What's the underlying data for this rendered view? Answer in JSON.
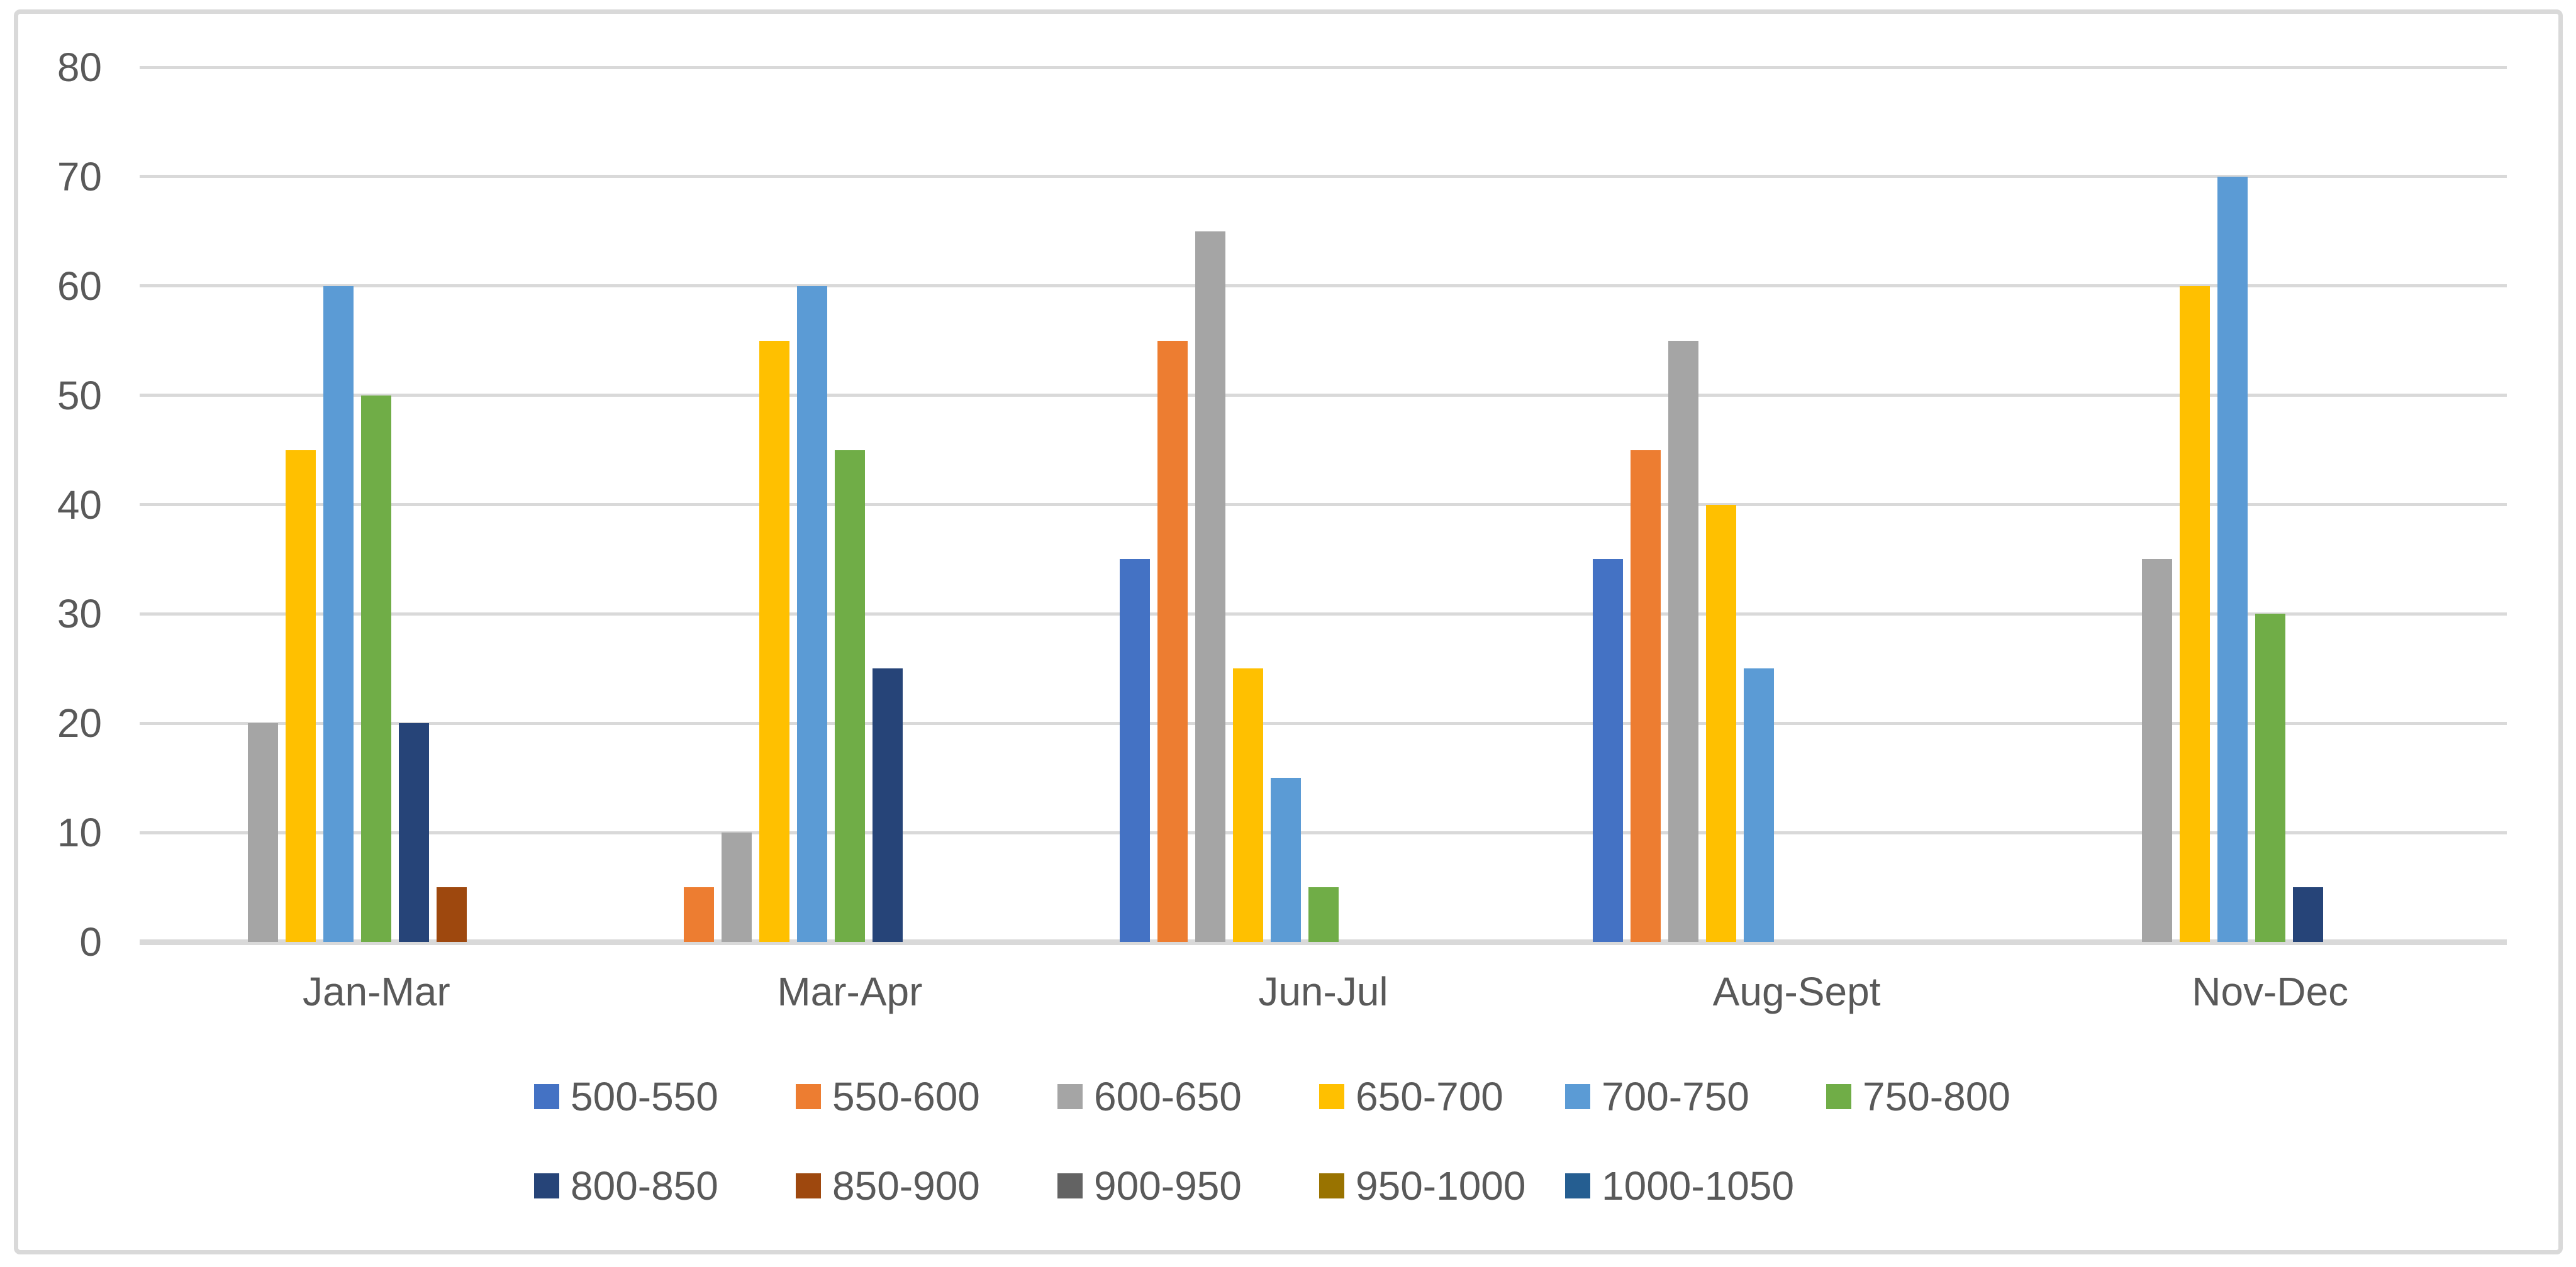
{
  "chart_data": {
    "type": "bar",
    "title": "",
    "xlabel": "",
    "ylabel": "",
    "categories": [
      "Jan-Mar",
      "Mar-Apr",
      "Jun-Jul",
      "Aug-Sept",
      "Nov-Dec"
    ],
    "series": [
      {
        "name": "500-550",
        "color": "#4472C4",
        "values": [
          0,
          0,
          35,
          35,
          0
        ]
      },
      {
        "name": "550-600",
        "color": "#ED7D31",
        "values": [
          0,
          5,
          55,
          45,
          0
        ]
      },
      {
        "name": "600-650",
        "color": "#A5A5A5",
        "values": [
          20,
          10,
          65,
          55,
          35
        ]
      },
      {
        "name": "650-700",
        "color": "#FFC000",
        "values": [
          45,
          55,
          25,
          40,
          60
        ]
      },
      {
        "name": "700-750",
        "color": "#5B9BD5",
        "values": [
          60,
          60,
          15,
          25,
          70
        ]
      },
      {
        "name": "750-800",
        "color": "#70AD47",
        "values": [
          50,
          45,
          5,
          0,
          30
        ]
      },
      {
        "name": "800-850",
        "color": "#264478",
        "values": [
          20,
          25,
          0,
          0,
          5
        ]
      },
      {
        "name": "850-900",
        "color": "#9E480E",
        "values": [
          5,
          0,
          0,
          0,
          0
        ]
      },
      {
        "name": "900-950",
        "color": "#636363",
        "values": [
          0,
          0,
          0,
          0,
          0
        ]
      },
      {
        "name": "950-1000",
        "color": "#997300",
        "values": [
          0,
          0,
          0,
          0,
          0
        ]
      },
      {
        "name": "1000-1050",
        "color": "#255E91",
        "values": [
          0,
          0,
          0,
          0,
          0
        ]
      }
    ],
    "y_axis": {
      "min": 0,
      "max": 80,
      "step": 10,
      "tick_labels": [
        "0",
        "10",
        "20",
        "30",
        "40",
        "50",
        "60",
        "70",
        "80"
      ]
    },
    "grid": true,
    "legend_position": "bottom",
    "legend_rows": [
      [
        "500-550",
        "550-600",
        "600-650",
        "650-700",
        "700-750",
        "750-800"
      ],
      [
        "800-850",
        "850-900",
        "900-950",
        "950-1000",
        "1000-1050"
      ]
    ],
    "style": {
      "gridline_color": "#D9D9D9",
      "axis_line_color": "#D9D9D9",
      "text_color": "#595959",
      "background": "#ffffff",
      "frame_border_color": "#D9D9D9"
    }
  }
}
